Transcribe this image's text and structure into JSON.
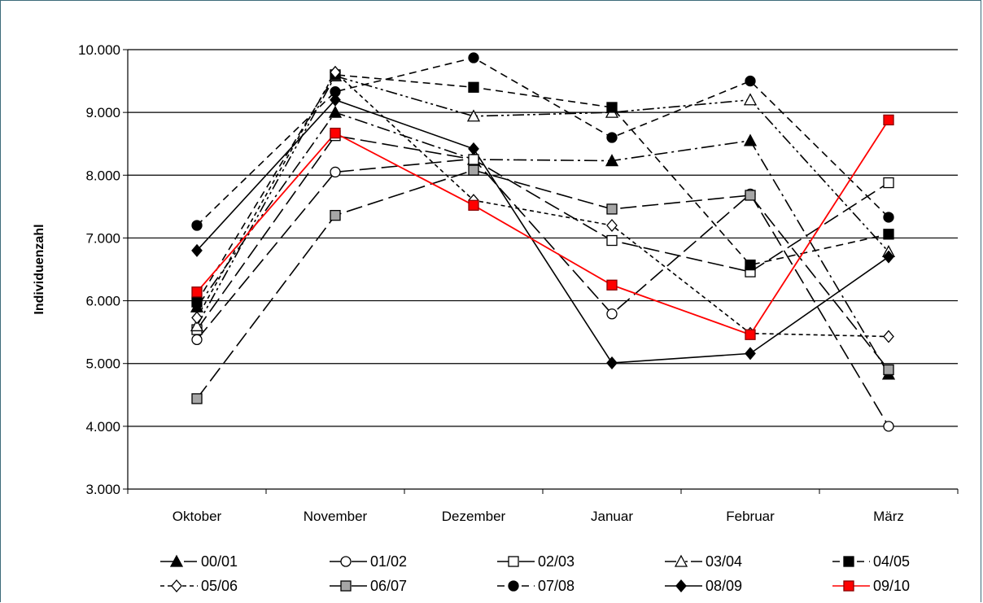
{
  "chart_data": {
    "type": "line",
    "title": "",
    "xlabel": "",
    "ylabel": "Individuenzahl",
    "ylim": [
      3000,
      10000
    ],
    "y_ticks": [
      3000,
      4000,
      5000,
      6000,
      7000,
      8000,
      9000,
      10000
    ],
    "y_tick_labels": [
      "3.000",
      "4.000",
      "5.000",
      "6.000",
      "7.000",
      "8.000",
      "9.000",
      "10.000"
    ],
    "categories": [
      "Oktober",
      "November",
      "Dezember",
      "Januar",
      "Februar",
      "März"
    ],
    "grid": "horizontal",
    "legend_position": "bottom",
    "series": [
      {
        "name": "00/01",
        "values": [
          5900,
          9000,
          8250,
          8230,
          8550,
          4830
        ],
        "marker": "triangle",
        "fill": "black",
        "color": "#000000",
        "dash": "dash-dot"
      },
      {
        "name": "01/02",
        "values": [
          5380,
          8050,
          8260,
          5790,
          7700,
          4000
        ],
        "marker": "circle",
        "fill": "white",
        "color": "#000000",
        "dash": "long-dash"
      },
      {
        "name": "02/03",
        "values": [
          5540,
          8630,
          8250,
          6960,
          6460,
          7880
        ],
        "marker": "square",
        "fill": "white",
        "color": "#000000",
        "dash": "long-dash"
      },
      {
        "name": "03/04",
        "values": [
          5600,
          9580,
          8940,
          9000,
          9200,
          6780
        ],
        "marker": "triangle",
        "fill": "white",
        "color": "#000000",
        "dash": "dash-dot-dot"
      },
      {
        "name": "04/05",
        "values": [
          5980,
          9600,
          9400,
          9080,
          6570,
          7060
        ],
        "marker": "square",
        "fill": "black",
        "color": "#000000",
        "dash": "dash"
      },
      {
        "name": "05/06",
        "values": [
          5730,
          9640,
          7600,
          7200,
          5480,
          5430
        ],
        "marker": "diamond",
        "fill": "white",
        "color": "#000000",
        "dash": "short-dash"
      },
      {
        "name": "06/07",
        "values": [
          4440,
          7360,
          8080,
          7460,
          7680,
          4900
        ],
        "marker": "square",
        "fill": "gray",
        "color": "#000000",
        "dash": "long-dash"
      },
      {
        "name": "07/08",
        "values": [
          7200,
          9330,
          9870,
          8600,
          9500,
          7330
        ],
        "marker": "circle",
        "fill": "black",
        "color": "#000000",
        "dash": "dash"
      },
      {
        "name": "08/09",
        "values": [
          6800,
          9200,
          8420,
          5010,
          5160,
          6700
        ],
        "marker": "diamond",
        "fill": "black",
        "color": "#000000",
        "dash": "solid"
      },
      {
        "name": "09/10",
        "values": [
          6140,
          8670,
          7520,
          6250,
          5460,
          8880
        ],
        "marker": "square",
        "fill": "red",
        "color": "#ff0000",
        "dash": "solid"
      }
    ]
  }
}
